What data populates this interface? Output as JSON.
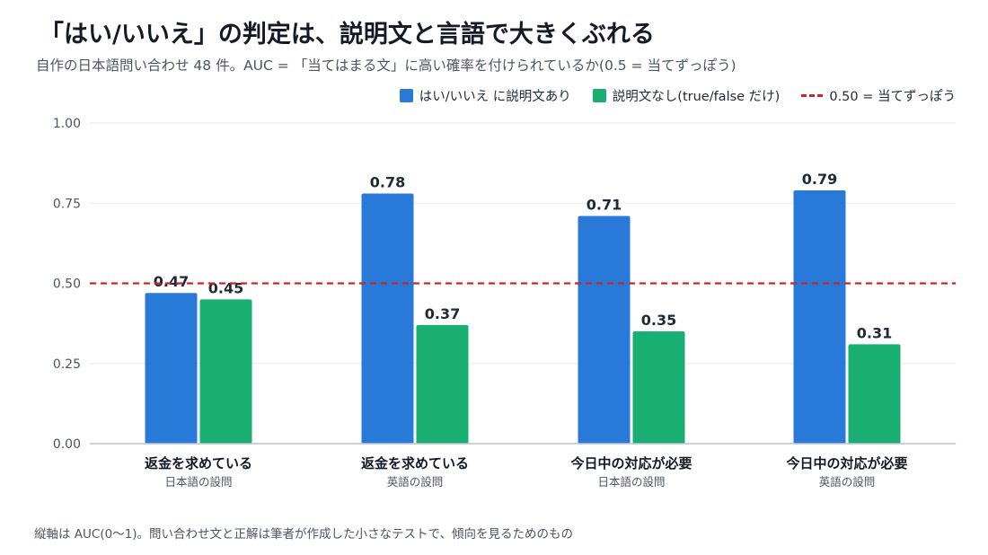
{
  "title": "「はい/いいえ」の判定は、説明文と言語で大きくぶれる",
  "subtitle": "自作の日本語問い合わせ 48 件。AUC = 「当てはまる文」に高い確率を付けられているか(0.5 = 当てずっぽう)",
  "footnote": "縦軸は AUC(0〜1)。問い合わせ文と正解は筆者が作成した小さなテストで、傾向を見るためのもの",
  "legend": {
    "series_1": "はい/いいえ に説明文あり",
    "series_2": "説明文なし(true/false だけ)",
    "reference": "0.50 = 当てずっぽう"
  },
  "colors": {
    "series_1": "#2979d9",
    "series_2": "#1aaf72",
    "reference": "#c62828"
  },
  "chart_data": {
    "type": "bar",
    "categories": [
      "返金を求めている",
      "返金を求めている",
      "今日中の対応が必要",
      "今日中の対応が必要"
    ],
    "sub_categories": [
      "日本語の設問",
      "英語の設問",
      "日本語の設問",
      "英語の設問"
    ],
    "series": [
      {
        "name": "はい/いいえ に説明文あり",
        "values": [
          0.47,
          0.78,
          0.71,
          0.79
        ],
        "labels": [
          "0.47",
          "0.78",
          "0.71",
          "0.79"
        ]
      },
      {
        "name": "説明文なし(true/false だけ)",
        "values": [
          0.45,
          0.37,
          0.35,
          0.31
        ],
        "labels": [
          "0.45",
          "0.37",
          "0.35",
          "0.31"
        ]
      }
    ],
    "reference_line": {
      "value": 0.5,
      "label": "0.50 = 当てずっぽう"
    },
    "yticks": [
      0,
      0.25,
      0.5,
      0.75,
      1.0
    ],
    "ytick_labels": [
      "0.00",
      "0.25",
      "0.50",
      "0.75",
      "1.00"
    ],
    "ylim": [
      0,
      1
    ],
    "grid": true,
    "legend_position": "top-right"
  }
}
